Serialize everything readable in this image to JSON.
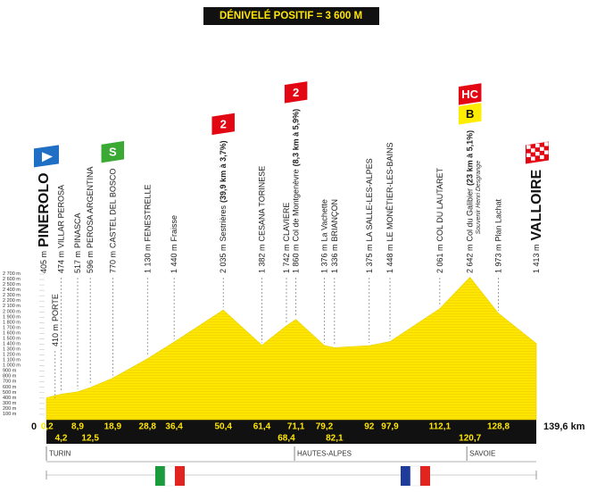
{
  "chart_data": {
    "type": "area",
    "title": "DÉNIVELÉ POSITIF = 3 600 M",
    "x": [
      0,
      0.2,
      4.2,
      8.9,
      12.5,
      18.9,
      28.8,
      36.4,
      50.4,
      61.4,
      68.4,
      71.1,
      79.2,
      82.1,
      92,
      97.9,
      112.1,
      120.7,
      128.8,
      139.6
    ],
    "x_labels": [
      "0",
      "0,2",
      "4,2",
      "8,9",
      "12,5",
      "18,9",
      "28,8",
      "36,4",
      "50,4",
      "61,4",
      "68,4",
      "71,1",
      "79,2",
      "82,1",
      "92",
      "97,9",
      "112,1",
      "120,7",
      "128,8",
      "139,6 km"
    ],
    "values": [
      405,
      410,
      474,
      517,
      596,
      770,
      1130,
      1440,
      2035,
      1382,
      1742,
      1860,
      1376,
      1336,
      1375,
      1448,
      2061,
      2642,
      1973,
      1413
    ],
    "value_labels": [
      "405 m",
      "410 m",
      "474 m",
      "517 m",
      "596 m",
      "770 m",
      "1 130 m",
      "1 440 m",
      "2 035 m",
      "1 382 m",
      "1 742 m",
      "1 860 m",
      "1 376 m",
      "1 336 m",
      "1 375 m",
      "1 448 m",
      "2 061 m",
      "2 642 m",
      "1 973 m",
      "1 413 m"
    ],
    "names": [
      "PINEROLO",
      "PORTE",
      "VILLAR PEROSA",
      "PINASCA",
      "PEROSA ARGENTINA",
      "CASTEL DEL BOSCO",
      "FENESTRELLE",
      "Fraisse",
      "Sestrières",
      "CESANA TORINESE",
      "CLAVIERE",
      "Col de Montgenèvre",
      "La Vachette",
      "BRIANÇON",
      "LA SALLE-LES-ALPES",
      "LE MONÊTIER-LES-BAINS",
      "COL DU LAUTARET",
      "Col du Galibier",
      "Plan Lachat",
      "VALLOIRE"
    ],
    "color": "#ffe600",
    "xlim": [
      0,
      139.6
    ],
    "ylim": [
      0,
      2700
    ],
    "yticks": [
      {
        "value": 100,
        "label": "100 m"
      },
      {
        "value": 200,
        "label": "200 m"
      },
      {
        "value": 300,
        "label": "300 m"
      },
      {
        "value": 400,
        "label": "400 m"
      },
      {
        "value": 500,
        "label": "500 m"
      },
      {
        "value": 600,
        "label": "600 m"
      },
      {
        "value": 700,
        "label": "700 m"
      },
      {
        "value": 800,
        "label": "800 m"
      },
      {
        "value": 900,
        "label": "900 m"
      },
      {
        "value": 1000,
        "label": "1 000 m"
      },
      {
        "value": 1100,
        "label": "1 100 m"
      },
      {
        "value": 1200,
        "label": "1 200 m"
      },
      {
        "value": 1300,
        "label": "1 300 m"
      },
      {
        "value": 1400,
        "label": "1 400 m"
      },
      {
        "value": 1500,
        "label": "1 500 m"
      },
      {
        "value": 1600,
        "label": "1 600 m"
      },
      {
        "value": 1700,
        "label": "1 700 m"
      },
      {
        "value": 1800,
        "label": "1 800 m"
      },
      {
        "value": 1900,
        "label": "1 900 m"
      },
      {
        "value": 2000,
        "label": "2 000 m"
      },
      {
        "value": 2100,
        "label": "2 100 m"
      },
      {
        "value": 2200,
        "label": "2 200 m"
      },
      {
        "value": 2300,
        "label": "2 300 m"
      },
      {
        "value": 2400,
        "label": "2 400 m"
      },
      {
        "value": 2500,
        "label": "2 500 m"
      },
      {
        "value": 2600,
        "label": "2 600 m"
      },
      {
        "value": 2700,
        "label": "2 700 m"
      }
    ],
    "signs": [
      {
        "label": "S",
        "color": "#3aaa35",
        "km": 18.9
      },
      {
        "label": "2",
        "color": "#e30613",
        "km": 50.4,
        "detail": "(39,9 km à 3,7%)"
      },
      {
        "label": "2",
        "color": "#e30613",
        "km": 71.1,
        "detail": "(8,3 km à 5,9%)"
      },
      {
        "label": "B",
        "color": "#ffed00",
        "km": 120.7
      },
      {
        "label": "HC",
        "color": "#e30613",
        "km": 120.7,
        "detail": "(23 km à 5,1%)",
        "note": "Souvenir Henri Desgrange"
      }
    ],
    "regions": [
      {
        "name": "TURIN",
        "km": 0
      },
      {
        "name": "HAUTES-ALPES",
        "km": 70.7
      },
      {
        "name": "SAVOIE",
        "km": 119.8
      }
    ]
  }
}
